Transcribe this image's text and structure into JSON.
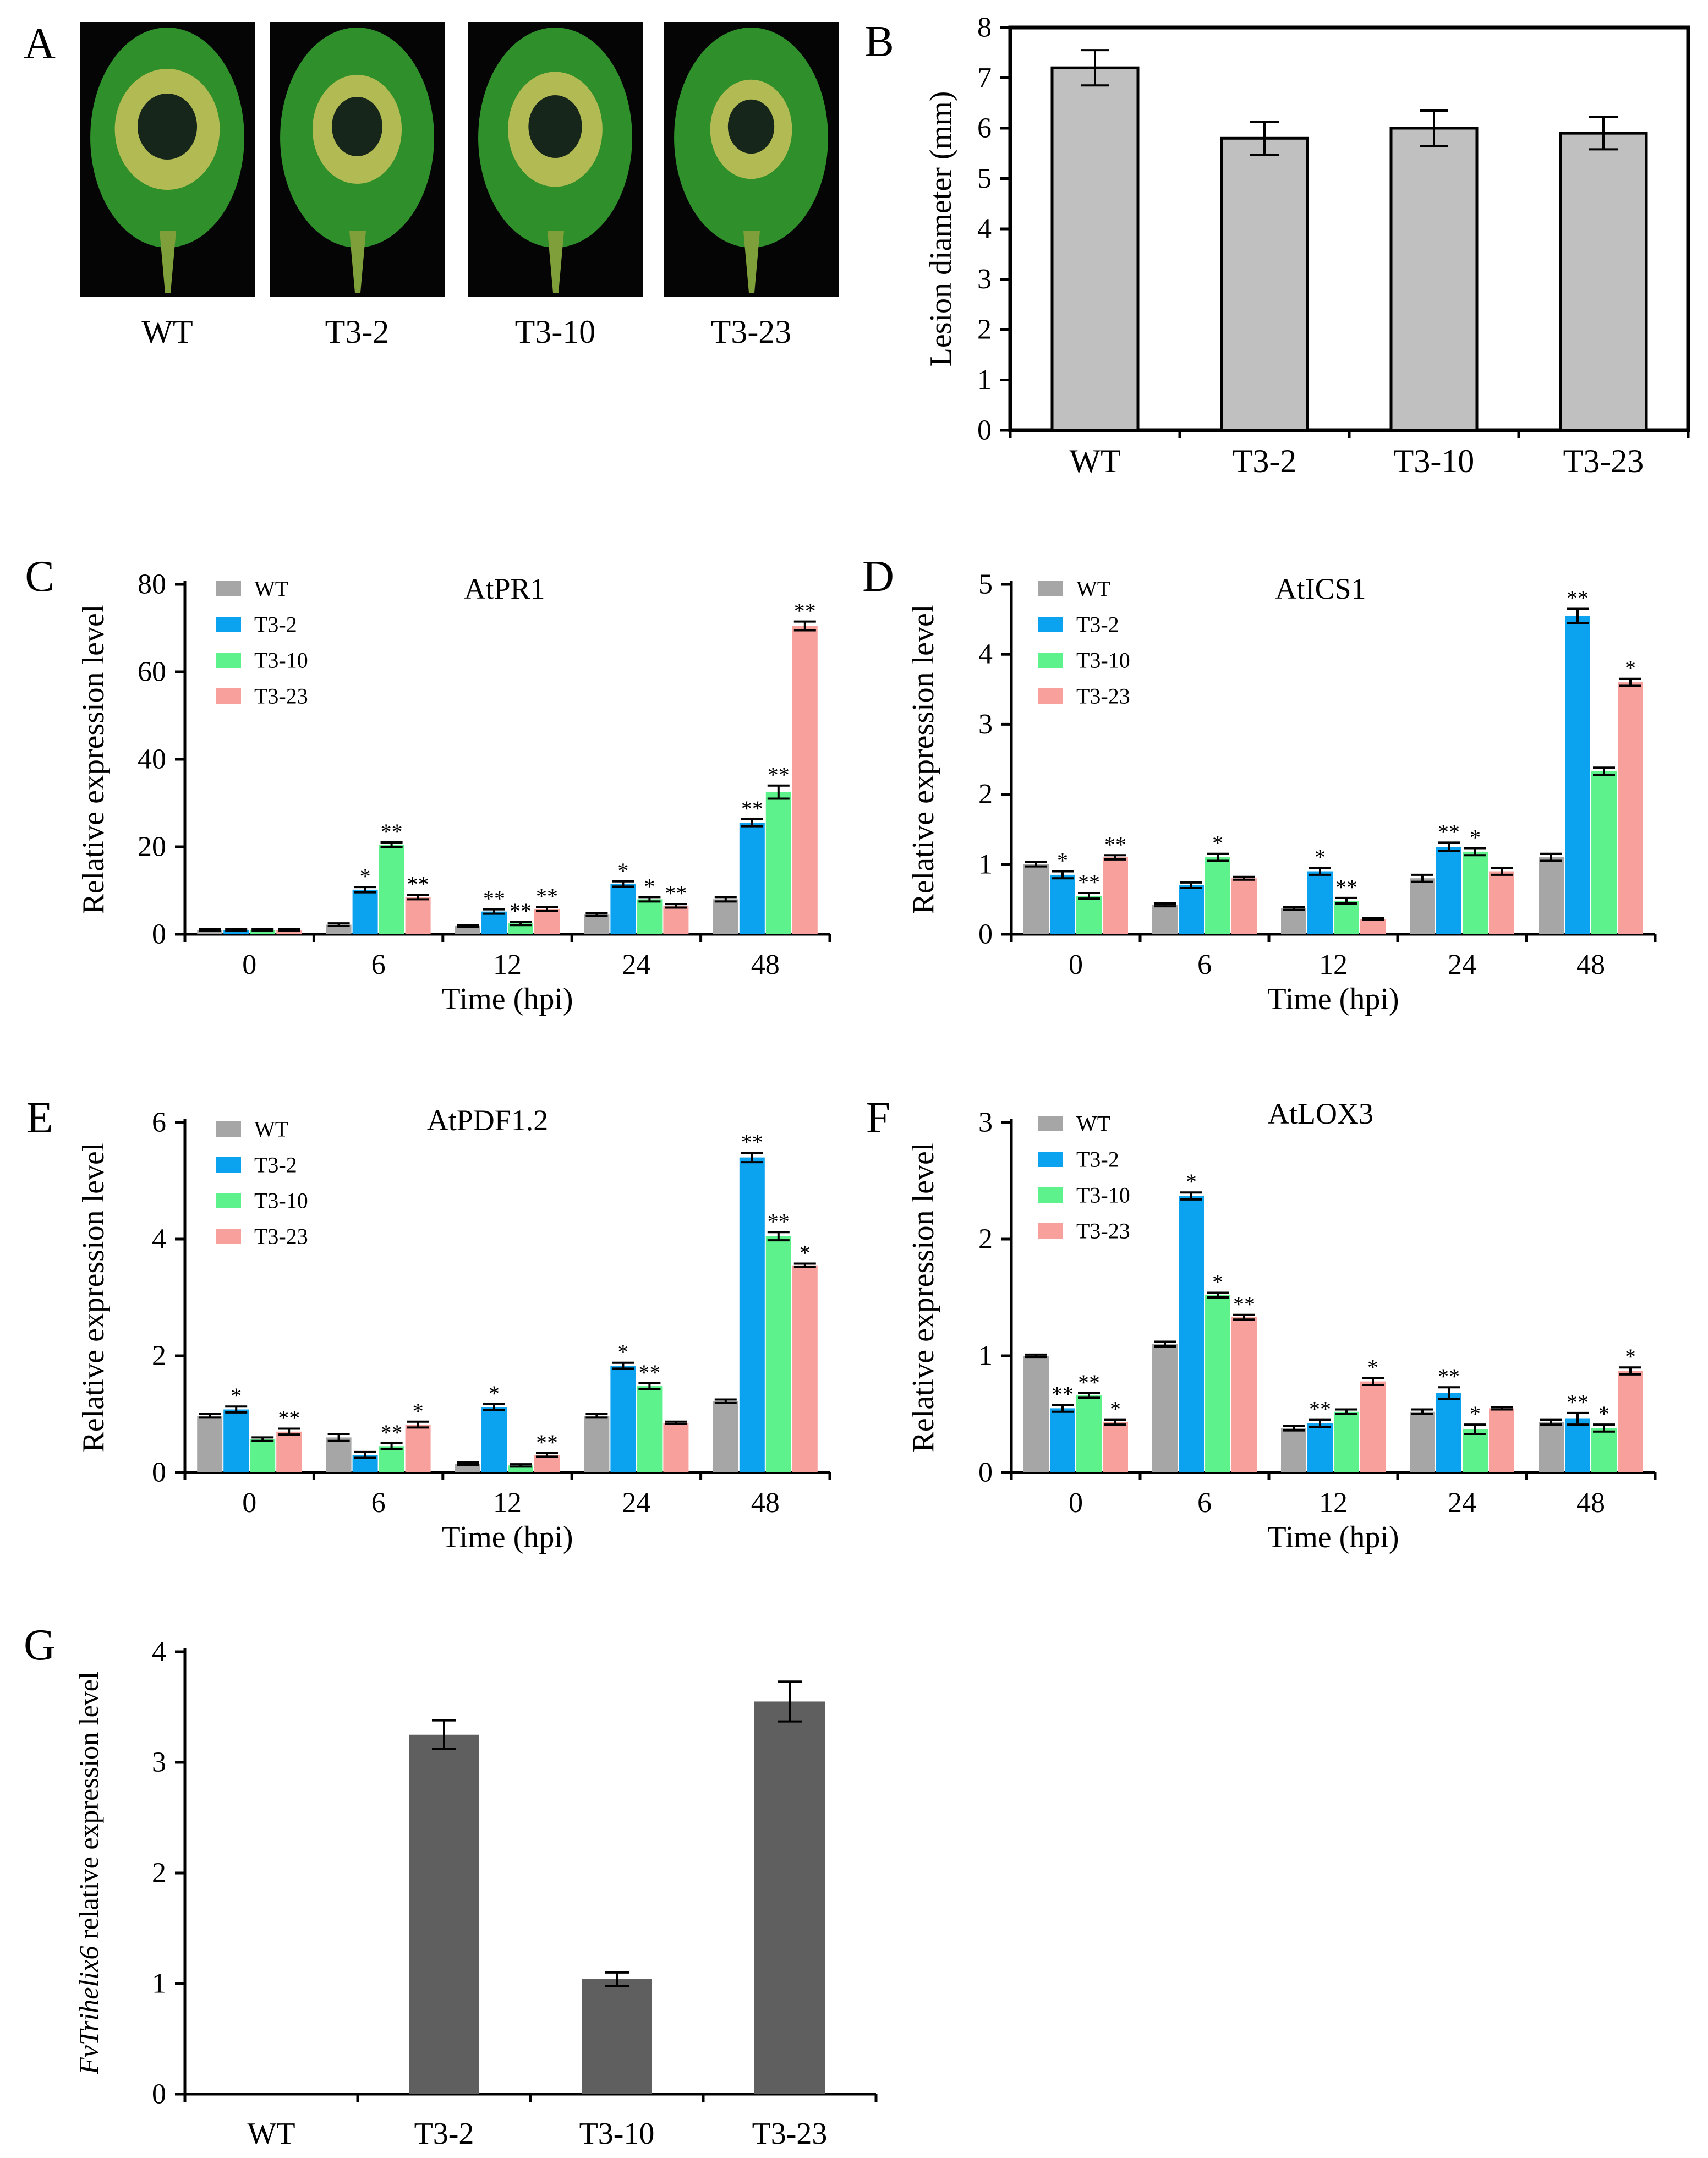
{
  "colors": {
    "WT": "#a6a6a6",
    "T3-2": "#0ba3ef",
    "T3-10": "#5ef28c",
    "T3-23": "#f7a09c",
    "panel_b_bar": "#c0c0c0",
    "panel_g_bar": "#5f5f5f",
    "leaf_background": "#050505",
    "leaf_green": "#2f8f2a",
    "lesion_yellow": "#c9c25c",
    "lesion_dark": "#17261a"
  },
  "panel_a": {
    "letter": "A",
    "images": [
      {
        "label": "WT",
        "icon": "leaf-with-large-lesion-icon"
      },
      {
        "label": "T3-2",
        "icon": "leaf-with-medium-lesion-icon"
      },
      {
        "label": "T3-10",
        "icon": "leaf-with-medium-lesion-icon"
      },
      {
        "label": "T3-23",
        "icon": "leaf-with-small-lesion-icon"
      }
    ]
  },
  "chart_data": [
    {
      "panel": "B",
      "type": "bar",
      "title": "",
      "xlabel": "",
      "ylabel": "Lesion diameter (mm)",
      "ylim": [
        0,
        8
      ],
      "yticks": [
        0,
        1,
        2,
        3,
        4,
        5,
        6,
        7,
        8
      ],
      "categories": [
        "WT",
        "T3-2",
        "T3-10",
        "T3-23"
      ],
      "values": [
        7.2,
        5.8,
        6.0,
        5.9
      ],
      "errors": [
        0.35,
        0.33,
        0.35,
        0.32
      ],
      "boxed": true
    },
    {
      "panel": "C",
      "type": "bar",
      "title": "AtPR1",
      "xlabel": "Time (hpi)",
      "ylabel": "Relative expression level",
      "ylim": [
        0,
        80
      ],
      "yticks": [
        0,
        20,
        40,
        60,
        80
      ],
      "categories": [
        "0",
        "6",
        "12",
        "24",
        "48"
      ],
      "legend": [
        "WT",
        "T3-2",
        "T3-10",
        "T3-23"
      ],
      "series": [
        {
          "name": "WT",
          "values": [
            1.0,
            2.2,
            1.9,
            4.5,
            8.0
          ],
          "errors": [
            0.2,
            0.3,
            0.2,
            0.3,
            0.5
          ],
          "sig": [
            "",
            "",
            "",
            "",
            ""
          ]
        },
        {
          "name": "T3-2",
          "values": [
            1.0,
            10.2,
            5.2,
            11.5,
            25.5
          ],
          "errors": [
            0.2,
            0.6,
            0.5,
            0.6,
            0.8
          ],
          "sig": [
            "",
            "*",
            "**",
            "*",
            "**"
          ]
        },
        {
          "name": "T3-10",
          "values": [
            1.0,
            20.5,
            2.5,
            8.0,
            32.5
          ],
          "errors": [
            0.2,
            0.5,
            0.4,
            0.5,
            1.5
          ],
          "sig": [
            "",
            "**",
            "**",
            "*",
            "**"
          ]
        },
        {
          "name": "T3-23",
          "values": [
            1.0,
            8.5,
            5.8,
            6.5,
            70.5
          ],
          "errors": [
            0.2,
            0.5,
            0.4,
            0.4,
            1.0
          ],
          "sig": [
            "",
            "**",
            "**",
            "**",
            "**"
          ]
        }
      ]
    },
    {
      "panel": "D",
      "type": "bar",
      "title": "AtICS1",
      "xlabel": "Time (hpi)",
      "ylabel": "Relative expression level",
      "ylim": [
        0,
        5
      ],
      "yticks": [
        0,
        1,
        2,
        3,
        4,
        5
      ],
      "categories": [
        "0",
        "6",
        "12",
        "24",
        "48"
      ],
      "legend": [
        "WT",
        "T3-2",
        "T3-10",
        "T3-23"
      ],
      "series": [
        {
          "name": "WT",
          "values": [
            1.0,
            0.42,
            0.37,
            0.8,
            1.1
          ],
          "errors": [
            0.03,
            0.02,
            0.02,
            0.05,
            0.05
          ],
          "sig": [
            "",
            "",
            "",
            "",
            ""
          ]
        },
        {
          "name": "T3-2",
          "values": [
            0.85,
            0.7,
            0.9,
            1.25,
            4.55
          ],
          "errors": [
            0.05,
            0.04,
            0.05,
            0.06,
            0.1
          ],
          "sig": [
            "*",
            "",
            "*",
            "**",
            "**"
          ]
        },
        {
          "name": "T3-10",
          "values": [
            0.55,
            1.1,
            0.48,
            1.18,
            2.33
          ],
          "errors": [
            0.04,
            0.05,
            0.04,
            0.05,
            0.05
          ],
          "sig": [
            "**",
            "*",
            "**",
            "*",
            ""
          ]
        },
        {
          "name": "T3-23",
          "values": [
            1.1,
            0.8,
            0.22,
            0.9,
            3.6
          ],
          "errors": [
            0.03,
            0.02,
            0.01,
            0.05,
            0.05
          ],
          "sig": [
            "**",
            "",
            "",
            "",
            "*"
          ]
        }
      ]
    },
    {
      "panel": "E",
      "type": "bar",
      "title": "AtPDF1.2",
      "xlabel": "Time (hpi)",
      "ylabel": "Relative expression level",
      "ylim": [
        0,
        6
      ],
      "yticks": [
        0,
        2,
        4,
        6
      ],
      "categories": [
        "0",
        "6",
        "12",
        "24",
        "48"
      ],
      "legend": [
        "WT",
        "T3-2",
        "T3-10",
        "T3-23"
      ],
      "series": [
        {
          "name": "WT",
          "values": [
            0.97,
            0.6,
            0.15,
            0.97,
            1.22
          ],
          "errors": [
            0.03,
            0.06,
            0.02,
            0.03,
            0.03
          ],
          "sig": [
            "",
            "",
            "",
            "",
            ""
          ]
        },
        {
          "name": "T3-2",
          "values": [
            1.08,
            0.3,
            1.12,
            1.83,
            5.4
          ],
          "errors": [
            0.05,
            0.05,
            0.05,
            0.05,
            0.08
          ],
          "sig": [
            "*",
            "",
            "*",
            "*",
            "**"
          ]
        },
        {
          "name": "T3-10",
          "values": [
            0.57,
            0.45,
            0.12,
            1.48,
            4.05
          ],
          "errors": [
            0.03,
            0.05,
            0.02,
            0.05,
            0.07
          ],
          "sig": [
            "",
            "**",
            "",
            "**",
            "**"
          ]
        },
        {
          "name": "T3-23",
          "values": [
            0.7,
            0.82,
            0.3,
            0.85,
            3.55
          ],
          "errors": [
            0.05,
            0.05,
            0.03,
            0.02,
            0.03
          ],
          "sig": [
            "**",
            "*",
            "**",
            "",
            "*"
          ]
        }
      ]
    },
    {
      "panel": "F",
      "type": "bar",
      "title": "AtLOX3",
      "xlabel": "Time (hpi)",
      "ylabel": "Relative expression level",
      "ylim": [
        0,
        3
      ],
      "yticks": [
        0,
        1,
        2,
        3
      ],
      "categories": [
        "0",
        "6",
        "12",
        "24",
        "48"
      ],
      "legend": [
        "WT",
        "T3-2",
        "T3-10",
        "T3-23"
      ],
      "series": [
        {
          "name": "WT",
          "values": [
            1.0,
            1.1,
            0.38,
            0.52,
            0.43
          ],
          "errors": [
            0.01,
            0.02,
            0.02,
            0.02,
            0.02
          ],
          "sig": [
            "",
            "",
            "",
            "",
            ""
          ]
        },
        {
          "name": "T3-2",
          "values": [
            0.55,
            2.37,
            0.42,
            0.68,
            0.46
          ],
          "errors": [
            0.03,
            0.03,
            0.03,
            0.05,
            0.05
          ],
          "sig": [
            "**",
            "*",
            "**",
            "**",
            "**"
          ]
        },
        {
          "name": "T3-10",
          "values": [
            0.66,
            1.52,
            0.52,
            0.37,
            0.38
          ],
          "errors": [
            0.02,
            0.02,
            0.02,
            0.04,
            0.03
          ],
          "sig": [
            "**",
            "*",
            "",
            "*",
            "*"
          ]
        },
        {
          "name": "T3-23",
          "values": [
            0.43,
            1.33,
            0.78,
            0.55,
            0.87
          ],
          "errors": [
            0.02,
            0.02,
            0.03,
            0.01,
            0.03
          ],
          "sig": [
            "*",
            "**",
            "*",
            "",
            "*"
          ]
        }
      ]
    },
    {
      "panel": "G",
      "type": "bar",
      "title": "",
      "xlabel": "",
      "ylabel_italic": "FvTrihelix6",
      "ylabel": " relative expression level",
      "ylim": [
        0,
        4
      ],
      "yticks": [
        0,
        1,
        2,
        3,
        4
      ],
      "categories": [
        "WT",
        "T3-2",
        "T3-10",
        "T3-23"
      ],
      "values": [
        0,
        3.25,
        1.04,
        3.55
      ],
      "errors": [
        0,
        0.13,
        0.06,
        0.18
      ]
    }
  ]
}
